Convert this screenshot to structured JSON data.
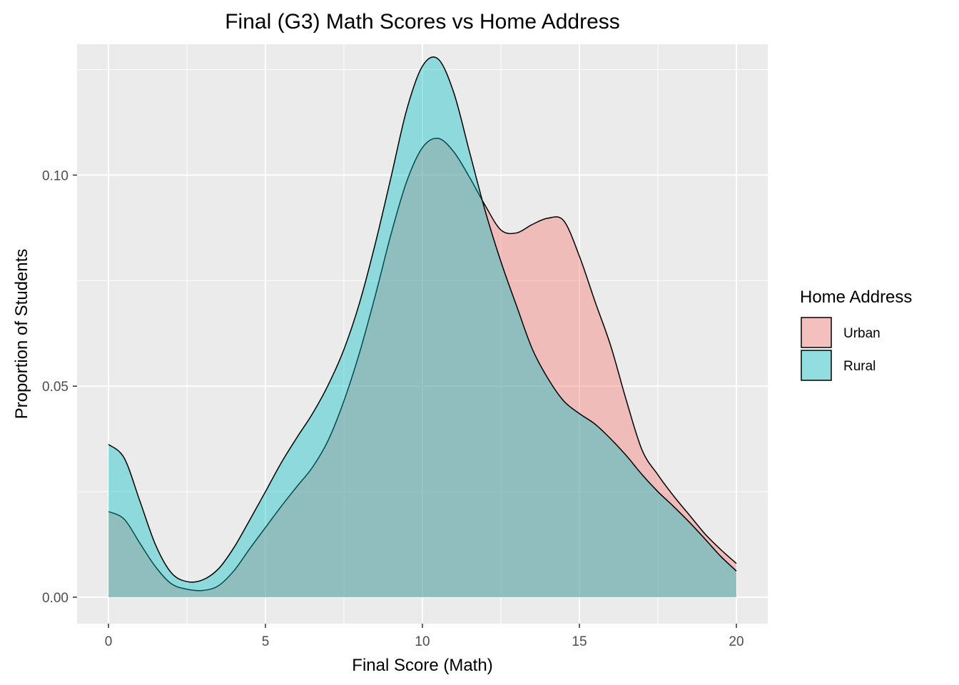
{
  "chart_data": {
    "type": "area",
    "title": "Final (G3) Math Scores vs Home Address",
    "xlabel": "Final Score (Math)",
    "ylabel": "Proportion of Students",
    "xlim": [
      -1,
      21
    ],
    "ylim": [
      -0.00626,
      0.131
    ],
    "x_ticks": [
      0,
      5,
      10,
      15,
      20
    ],
    "x_tick_labels": [
      "0",
      "5",
      "10",
      "15",
      "20"
    ],
    "y_ticks": [
      0.0,
      0.05,
      0.1
    ],
    "y_tick_labels": [
      "0.00",
      "0.05",
      "0.10"
    ],
    "grid": true,
    "legend": {
      "title": "Home Address",
      "position": "right",
      "entries": [
        {
          "label": "Urban",
          "color": "#F8766D"
        },
        {
          "label": "Rural",
          "color": "#00BFC4"
        }
      ]
    },
    "series": [
      {
        "name": "Urban",
        "color": "#F8766D",
        "x": [
          0,
          0.5,
          1,
          1.5,
          2,
          2.5,
          3,
          3.5,
          4,
          4.5,
          5,
          5.5,
          6,
          6.5,
          7,
          7.5,
          8,
          8.5,
          9,
          9.5,
          10,
          10.5,
          11,
          11.5,
          12,
          12.5,
          13,
          13.5,
          14,
          14.5,
          15,
          15.5,
          16,
          16.5,
          17,
          17.5,
          18,
          18.5,
          19,
          19.5,
          20
        ],
        "y": [
          0.0203,
          0.0185,
          0.0128,
          0.0072,
          0.0032,
          0.0019,
          0.0016,
          0.0027,
          0.0063,
          0.0115,
          0.0165,
          0.0215,
          0.0262,
          0.0308,
          0.0372,
          0.0465,
          0.058,
          0.0715,
          0.086,
          0.0985,
          0.1065,
          0.1087,
          0.1055,
          0.0995,
          0.0928,
          0.087,
          0.0863,
          0.0883,
          0.0898,
          0.0892,
          0.0808,
          0.07,
          0.0595,
          0.0465,
          0.0348,
          0.029,
          0.024,
          0.0195,
          0.015,
          0.0113,
          0.008
        ]
      },
      {
        "name": "Rural",
        "color": "#00BFC4",
        "x": [
          0,
          0.5,
          1,
          1.5,
          2,
          2.5,
          3,
          3.5,
          4,
          4.5,
          5,
          5.5,
          6,
          6.5,
          7,
          7.5,
          8,
          8.5,
          9,
          9.5,
          10,
          10.5,
          11,
          11.5,
          12,
          12.5,
          13,
          13.5,
          14,
          14.5,
          15,
          15.5,
          16,
          16.5,
          17,
          17.5,
          18,
          18.5,
          19,
          19.5,
          20
        ],
        "y": [
          0.0362,
          0.033,
          0.0228,
          0.0124,
          0.0058,
          0.0037,
          0.0041,
          0.0067,
          0.0118,
          0.0183,
          0.025,
          0.0318,
          0.0378,
          0.0435,
          0.0503,
          0.0587,
          0.0698,
          0.0838,
          0.0995,
          0.1155,
          0.1258,
          0.1275,
          0.1195,
          0.1055,
          0.0915,
          0.0795,
          0.069,
          0.0588,
          0.0518,
          0.0465,
          0.0435,
          0.041,
          0.0375,
          0.0335,
          0.029,
          0.025,
          0.0215,
          0.0178,
          0.0138,
          0.0097,
          0.0062
        ]
      }
    ]
  }
}
